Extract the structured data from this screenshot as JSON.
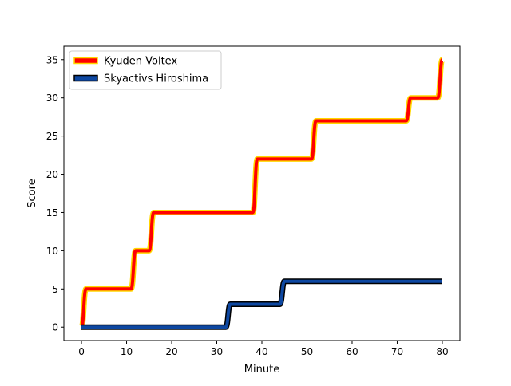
{
  "chart_data": {
    "type": "line",
    "title": "",
    "xlabel": "Minute",
    "ylabel": "Score",
    "xlim": [
      -3.9,
      83.9
    ],
    "ylim": [
      -1.75,
      36.75
    ],
    "xticks": [
      0,
      10,
      20,
      30,
      40,
      50,
      60,
      70,
      80
    ],
    "yticks": [
      0,
      5,
      10,
      15,
      20,
      25,
      30,
      35
    ],
    "grid": false,
    "legend_position": "top-left",
    "series": [
      {
        "name": "Kyuden Voltex",
        "color": "#ff0000",
        "edge_color": "#ffd700",
        "x": [
          0,
          1,
          11,
          12,
          15,
          16,
          38,
          39,
          51,
          52,
          72,
          73,
          79,
          80
        ],
        "y": [
          0,
          5,
          5,
          10,
          10,
          15,
          15,
          22,
          22,
          27,
          27,
          30,
          30,
          35
        ]
      },
      {
        "name": "Skyactivs Hiroshima",
        "color": "#0d47a1",
        "edge_color": "#000000",
        "x": [
          0,
          32,
          33,
          44,
          45,
          80
        ],
        "y": [
          0,
          0,
          3,
          3,
          6,
          6
        ]
      }
    ]
  }
}
